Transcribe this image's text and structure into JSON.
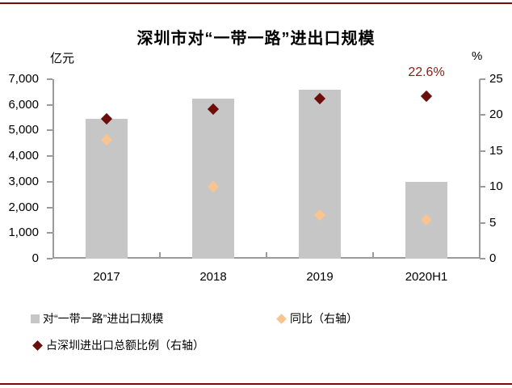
{
  "colors": {
    "border": "#7a0d0a",
    "axis": "#9b9b9b",
    "annotation": "#8e1a10"
  },
  "chart_data": {
    "type": "combo",
    "title": "深圳市对“一带一路”进出口规模",
    "categories": [
      "2017",
      "2018",
      "2019",
      "2020H1"
    ],
    "series": [
      {
        "key": "scale",
        "name": "对“一带一路”进出口规模",
        "type": "bar",
        "axis": "left",
        "marker": "square",
        "color": "#c6c6c6",
        "values": [
          5460,
          6250,
          6600,
          3000
        ]
      },
      {
        "key": "yoy",
        "name": "同比（右轴）",
        "type": "scatter",
        "axis": "right",
        "marker": "diamond",
        "color": "#f8c591",
        "values": [
          16.5,
          10.0,
          6.1,
          5.4
        ]
      },
      {
        "key": "share",
        "name": "占深圳进出口总额比例（右轴）",
        "type": "scatter",
        "axis": "right",
        "marker": "diamond",
        "color": "#6d0e0c",
        "values": [
          19.5,
          20.8,
          22.3,
          22.6
        ]
      }
    ],
    "left_axis": {
      "label": "亿元",
      "min": 0,
      "max": 7000,
      "step": 1000,
      "ticks": [
        "0",
        "1,000",
        "2,000",
        "3,000",
        "4,000",
        "5,000",
        "6,000",
        "7,000"
      ]
    },
    "right_axis": {
      "label": "%",
      "min": 0,
      "max": 25,
      "step": 5,
      "ticks": [
        "0",
        "5",
        "10",
        "15",
        "20",
        "25"
      ]
    },
    "annotation": {
      "text": "22.6%",
      "series_key": "share",
      "category": "2020H1"
    },
    "grid": false,
    "legend_position": "bottom-left"
  }
}
